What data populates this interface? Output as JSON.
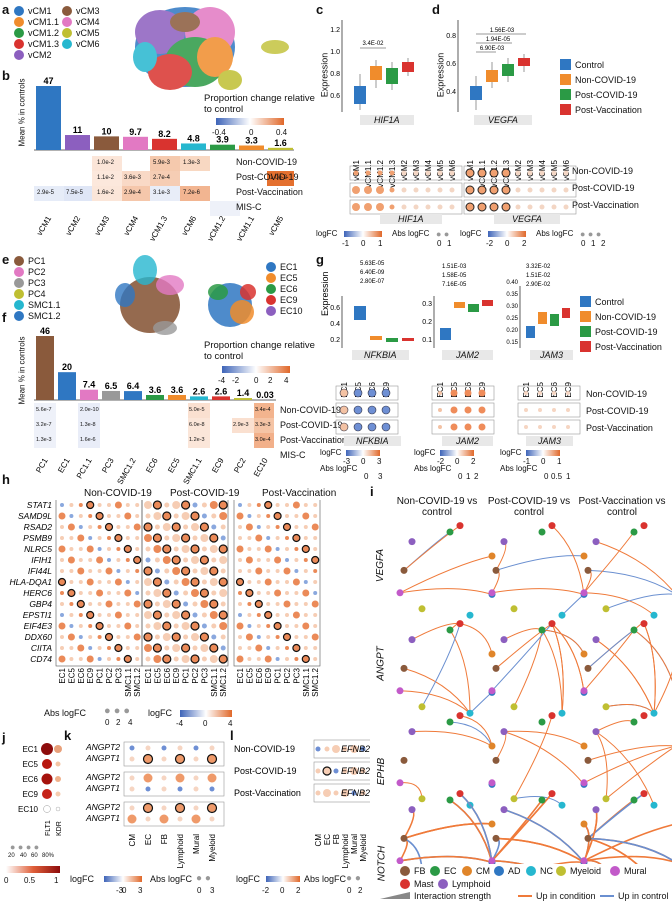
{
  "panels": [
    "a",
    "b",
    "c",
    "d",
    "e",
    "f",
    "g",
    "h",
    "i",
    "j",
    "k",
    "l"
  ],
  "colors": {
    "vCM1": "#2f77c2",
    "vCM1.1": "#f08c2c",
    "vCM1.2": "#2b9a45",
    "vCM1.3": "#d9332f",
    "vCM2": "#8c5fbf",
    "vCM3": "#8a5a3c",
    "vCM4": "#e279c3",
    "vCM5": "#bfbf32",
    "vCM6": "#26b7cf",
    "Control": "#2f77c2",
    "Non-COVID-19": "#f08c2c",
    "Post-COVID-19": "#2b9a45",
    "Post-Vaccination": "#d9332f"
  },
  "a": {
    "legend": [
      "vCM1",
      "vCM1.1",
      "vCM1.2",
      "vCM1.3",
      "vCM2",
      "vCM3",
      "vCM4",
      "vCM5",
      "vCM6"
    ]
  },
  "b": {
    "ylabel": "Mean % in controls",
    "colorbar_title": "Proportion change relative to control",
    "colorbar_ticks": [
      "-0.4",
      "0",
      "0.4"
    ],
    "rows": [
      "Non-COVID-19",
      "Post-COVID-19",
      "Post-Vaccination",
      "MIS-C"
    ],
    "cells": [
      [
        "1.0e-2",
        "5.9e-3",
        "1.3e-3"
      ],
      [
        "1.1e-2",
        "3.6e-3",
        "2.7e-4",
        "1.0e-2"
      ],
      [
        "2.9e-5",
        "7.5e-5",
        "1.6e-2",
        "2.9e-4",
        "3.1e-3",
        "7.2e-6"
      ]
    ]
  },
  "chart_data": [
    {
      "type": "bar",
      "panel": "b",
      "categories": [
        "vCM1",
        "vCM2",
        "vCM3",
        "vCM4",
        "vCM1.3",
        "vCM6",
        "vCM1.2",
        "vCM1.1",
        "vCM5"
      ],
      "values": [
        47,
        11,
        10,
        9.7,
        8.2,
        4.8,
        3.9,
        3.3,
        1.6
      ],
      "ylabel": "Mean % in controls"
    },
    {
      "type": "bar",
      "panel": "f",
      "categories": [
        "PC1",
        "EC1",
        "PC1.1",
        "PC3",
        "SMC1.2",
        "EC6",
        "EC5",
        "SMC1.1",
        "EC9",
        "PC2",
        "EC10"
      ],
      "values": [
        46,
        20,
        7.4,
        6.5,
        6.4,
        3.6,
        3.6,
        2.6,
        2.6,
        1.4,
        0.03
      ],
      "ylabel": "Mean % in controls"
    }
  ],
  "c": {
    "gene": "HIF1A",
    "ylabel": "Expression",
    "pval": "3.4E-02",
    "yticks": [
      "0.6",
      "0.8",
      "1.0",
      "1.2"
    ],
    "dot_cols": [
      "vCM1",
      "vCM1.1",
      "vCM1.2",
      "vCM1.3",
      "vCM2",
      "vCM3",
      "vCM4",
      "vCM5",
      "vCM6"
    ]
  },
  "d": {
    "gene": "VEGFA",
    "ylabel": "Expression",
    "pvals": [
      "1.56E-03",
      "1.94E-05",
      "6.90E-03"
    ],
    "yticks": [
      "0.4",
      "0.6",
      "0.8"
    ],
    "rows": [
      "Non-COVID-19",
      "Post-COVID-19",
      "Post-Vaccination"
    ]
  },
  "cd_legend": {
    "logfc": "logFC",
    "abs": "Abs logFC",
    "ticks_c": [
      "-1",
      "0",
      "1"
    ],
    "abs_c": [
      "0",
      "1"
    ],
    "ticks_d": [
      "-2",
      "0",
      "2"
    ],
    "abs_d": [
      "0",
      "1",
      "2"
    ]
  },
  "cond_legend": [
    "Control",
    "Non-COVID-19",
    "Post-COVID-19",
    "Post-Vaccination"
  ],
  "e": {
    "left": [
      "PC1",
      "PC2",
      "PC3",
      "PC4",
      "SMC1.1",
      "SMC1.2"
    ],
    "right": [
      "EC1",
      "EC5",
      "EC6",
      "EC9",
      "EC10"
    ]
  },
  "f": {
    "colorbar_title": "Proportion change relative to control",
    "colorbar_ticks": [
      "-4",
      "-2",
      "0",
      "2",
      "4"
    ],
    "cells_nc": [
      "5.6e-7",
      "2.0e-10",
      "5.0e-5",
      "3.4e-4"
    ],
    "cells_pc": [
      "3.2e-7",
      "1.3e-8",
      "6.0e-8",
      "2.9e-3",
      "3.3e-3"
    ],
    "cells_pv": [
      "1.3e-3",
      "1.6e-6",
      "1.2e-3",
      "3.0e-4"
    ]
  },
  "g": {
    "genes": [
      "NFKBIA",
      "JAM2",
      "JAM3"
    ],
    "pv_nfkbia": [
      "5.63E-05",
      "6.40E-09",
      "2.80E-07"
    ],
    "pv_jam2": [
      "1.51E-03",
      "1.58E-05",
      "7.16E-05"
    ],
    "pv_jam3": [
      "3.32E-02",
      "1.51E-02",
      "2.90E-02"
    ],
    "yt1": [
      "0.2",
      "0.4",
      "0.6"
    ],
    "yt2": [
      "0.1",
      "0.2",
      "0.3"
    ],
    "yt3": [
      "0.15",
      "0.20",
      "0.25",
      "0.30",
      "0.35",
      "0.40"
    ],
    "cols": [
      "EC1",
      "EC5",
      "EC6",
      "EC9"
    ],
    "rows": [
      "Non-COVID-19",
      "Post-COVID-19",
      "Post-Vaccination"
    ],
    "lfc1": [
      "-3",
      "0",
      "3"
    ],
    "lfc2": [
      "-2",
      "0",
      "2"
    ],
    "lfc3": [
      "-1",
      "0",
      "1"
    ],
    "abs1": [
      "0",
      "3"
    ],
    "abs2": [
      "0",
      "1",
      "2"
    ],
    "abs3": [
      "0",
      "0.5",
      "1"
    ]
  },
  "h": {
    "groups": [
      "Non-COVID-19",
      "Post-COVID-19",
      "Post-Vaccination"
    ],
    "genes": [
      "STAT1",
      "SAMD9L",
      "RSAD2",
      "PSMB9",
      "NLRC5",
      "IFIH1",
      "IFI44L",
      "HLA-DQA1",
      "HERC6",
      "GBP4",
      "EPSTI1",
      "EIF4E3",
      "DDX60",
      "CIITA",
      "CD74"
    ],
    "cols": [
      "EC1",
      "EC5",
      "EC6",
      "EC9",
      "PC1",
      "PC2",
      "PC3",
      "SMC1.1",
      "SMC1.2"
    ],
    "abs_ticks": [
      "0",
      "2",
      "4"
    ],
    "lfc_ticks": [
      "-4",
      "0",
      "4"
    ]
  },
  "i": {
    "headers": [
      "Non-COVID-19 vs control",
      "Post-COVID-19 vs control",
      "Post-Vaccination vs control"
    ],
    "rows": [
      "VEGFA",
      "ANGPT",
      "EPHB",
      "NOTCH"
    ],
    "legend": [
      "FB",
      "EC",
      "CM",
      "AD",
      "NC",
      "Myeloid",
      "Mural",
      "Mast",
      "Lymphoid"
    ],
    "legend2": [
      "Interaction strength",
      "Up in condition",
      "Up in control"
    ],
    "node_colors": [
      "#8a5a3c",
      "#2b9a45",
      "#e0852a",
      "#2f77c2",
      "#26b7cf",
      "#bfbf32",
      "#c25ac9",
      "#d9332f",
      "#8c5fbf"
    ]
  },
  "j": {
    "rows": [
      "EC1",
      "EC5",
      "EC6",
      "EC9",
      "EC10"
    ],
    "cols": [
      "FLT1",
      "KDR"
    ],
    "pct": [
      "20",
      "40",
      "60",
      "80%"
    ],
    "scale": [
      "0",
      "0.5",
      "1"
    ]
  },
  "k": {
    "genes": [
      "ANGPT2",
      "ANGPT1"
    ],
    "cols": [
      "CM",
      "EC",
      "FB",
      "Lymphoid",
      "Mural",
      "Myeloid"
    ],
    "lfc": [
      "-3",
      "0",
      "3"
    ],
    "abs": [
      "0",
      "3"
    ]
  },
  "l": {
    "rows": [
      "Non-COVID-19",
      "Post-COVID-19",
      "Post-Vaccination"
    ],
    "gene": "EFNB2",
    "cols": [
      "CM",
      "EC",
      "FB",
      "Lymphoid",
      "Mural",
      "Myeloid"
    ],
    "lfc": [
      "-2",
      "0",
      "2"
    ],
    "abs": [
      "0",
      "2"
    ]
  },
  "labels": {
    "logFC": "logFC",
    "abs": "Abs logFC",
    "expr": "Expression"
  }
}
